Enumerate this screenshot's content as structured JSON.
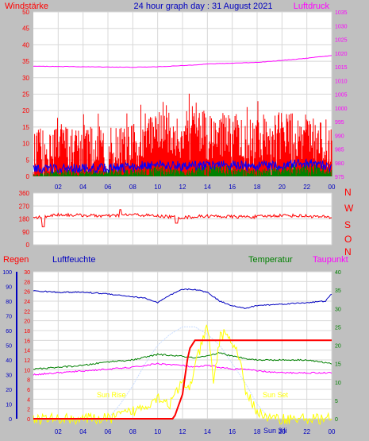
{
  "header": {
    "left_label": "Windstärke",
    "title": "24 hour graph day : 31 August 2021",
    "right_label": "Luftdruck"
  },
  "bottom_header": {
    "rain_label": "Regen",
    "humidity_label": "Luftfeuchte",
    "temperature_label": "Temperatur",
    "dewpoint_label": "Taupunkt"
  },
  "annotations": {
    "sunrise_label": "Sun Rise",
    "sunset_label": "Sun Set",
    "sun_mid_label": "Sun 3ili"
  },
  "colors": {
    "background": "#c0c0c0",
    "plot": "#ffffff",
    "wind_gust": "#ff0000",
    "wind_avg": "#0000ff",
    "wind_min": "#008000",
    "pressure": "#ff00ff",
    "direction": "#ff0000",
    "humidity": "#0000c0",
    "temperature": "#008000",
    "dewpoint": "#ff00ff",
    "rain": "#ff0000",
    "solar": "#ffff00",
    "solar_max": "#c8dcff",
    "axis_blue": "#0000c0"
  },
  "chart_data": [
    {
      "type": "line",
      "xlabel": "",
      "ylabel": "Windstärke",
      "x_ticks": [
        "02",
        "04",
        "06",
        "08",
        "10",
        "12",
        "14",
        "16",
        "18",
        "20",
        "22",
        "00"
      ],
      "ylim": [
        0,
        50
      ],
      "y_ticks": [
        "0",
        "5",
        "10",
        "15",
        "20",
        "25",
        "30",
        "35",
        "40",
        "45",
        "50"
      ],
      "y2lim": [
        975,
        1035
      ],
      "y2_ticks": [
        "975",
        "980",
        "985",
        "990",
        "995",
        "1000",
        "1005",
        "1010",
        "1015",
        "1020",
        "1025",
        "1030",
        "1035"
      ],
      "grid": true,
      "series": [
        {
          "name": "Luftdruck",
          "axis": "right",
          "x": [
            0,
            2,
            4,
            6,
            8,
            10,
            12,
            14,
            16,
            18,
            20,
            22,
            24
          ],
          "values": [
            1015.2,
            1015.1,
            1015.0,
            1014.9,
            1014.8,
            1015.0,
            1015.4,
            1016.0,
            1016.3,
            1016.6,
            1017.3,
            1018.1,
            1019.1
          ]
        },
        {
          "name": "gust",
          "x": [
            0,
            2,
            4,
            6,
            8,
            10,
            12,
            13,
            14,
            16,
            18,
            20,
            22,
            24
          ],
          "values": [
            7,
            9,
            9,
            8,
            9,
            13,
            12,
            16,
            12,
            13,
            11,
            13,
            12,
            8
          ]
        },
        {
          "name": "average",
          "x": [
            0,
            2,
            4,
            6,
            8,
            10,
            12,
            14,
            16,
            18,
            20,
            22,
            24
          ],
          "values": [
            2,
            2.5,
            2.5,
            2.5,
            2.8,
            4,
            3,
            3.5,
            3.5,
            3,
            3.5,
            4,
            3
          ]
        },
        {
          "name": "minimum",
          "x": [
            0,
            2,
            4,
            6,
            8,
            10,
            12,
            14,
            16,
            18,
            20,
            22,
            24
          ],
          "values": [
            0.5,
            1,
            1,
            1,
            1,
            1.5,
            1,
            1.5,
            1.5,
            1,
            1.5,
            2,
            1
          ]
        }
      ]
    },
    {
      "type": "line",
      "xlabel": "",
      "ylabel": "",
      "ylim": [
        0,
        360
      ],
      "y_ticks": [
        "0",
        "90",
        "180",
        "270",
        "360"
      ],
      "right_labels": [
        "N",
        "W",
        "S",
        "O",
        "N"
      ],
      "grid": true,
      "series": [
        {
          "name": "direction",
          "x": [
            0,
            1,
            2,
            4,
            6,
            8,
            10,
            12,
            14,
            16,
            18,
            20,
            22,
            24
          ],
          "values": [
            185,
            200,
            210,
            205,
            200,
            210,
            200,
            190,
            200,
            195,
            195,
            205,
            200,
            190
          ]
        }
      ]
    },
    {
      "type": "line",
      "xlabel": "",
      "ylabel": "",
      "x_ticks": [
        "02",
        "04",
        "06",
        "08",
        "10",
        "12",
        "14",
        "16",
        "18",
        "20",
        "22",
        "00"
      ],
      "ylim_humidity": [
        0,
        100
      ],
      "humidity_ticks": [
        "0",
        "10",
        "20",
        "30",
        "40",
        "50",
        "60",
        "70",
        "80",
        "90",
        "100"
      ],
      "ylim_rain": [
        0,
        30
      ],
      "rain_ticks": [
        "0",
        "2",
        "4",
        "6",
        "8",
        "10",
        "12",
        "14",
        "16",
        "18",
        "20",
        "22",
        "24",
        "26",
        "28",
        "30"
      ],
      "ylim_temp": [
        0,
        40
      ],
      "temp_ticks": [
        "0",
        "5",
        "10",
        "15",
        "20",
        "25",
        "30",
        "35",
        "40"
      ],
      "grid": true,
      "series": [
        {
          "name": "Luftfeuchte",
          "axis": "humidity",
          "x": [
            0,
            2,
            4,
            6,
            8,
            9,
            10,
            11,
            12,
            13,
            14,
            15,
            16,
            17,
            18,
            20,
            22,
            23.5,
            24
          ],
          "values": [
            87,
            86,
            86,
            85,
            83,
            82,
            79,
            84,
            88,
            88,
            86,
            80,
            77,
            75,
            77,
            78,
            79,
            80,
            85
          ]
        },
        {
          "name": "Temperatur",
          "axis": "temp",
          "x": [
            0,
            2,
            4,
            6,
            8,
            10,
            12,
            13,
            14,
            15,
            16,
            17,
            18,
            20,
            22,
            24
          ],
          "values": [
            13.5,
            14,
            14.5,
            15.5,
            16,
            17.5,
            17,
            16.5,
            17,
            18,
            17,
            16.5,
            16,
            16,
            16,
            15
          ]
        },
        {
          "name": "Taupunkt",
          "axis": "temp",
          "x": [
            0,
            2,
            4,
            6,
            8,
            10,
            12,
            13,
            14,
            15,
            16,
            17,
            18,
            20,
            22,
            24
          ],
          "values": [
            12,
            12.5,
            13,
            13.5,
            14,
            15,
            14.5,
            14,
            14.5,
            14,
            13.5,
            13.5,
            13,
            12.5,
            12.5,
            12.5
          ]
        },
        {
          "name": "Regen",
          "axis": "rain",
          "x": [
            0,
            11.3,
            12,
            12.5,
            13,
            24
          ],
          "values": [
            0,
            0,
            5,
            14,
            16,
            16
          ]
        },
        {
          "name": "solar",
          "axis": "temp",
          "x": [
            0,
            6,
            7,
            8,
            9,
            10,
            11,
            12,
            12.5,
            13,
            13.5,
            14,
            14.5,
            15,
            15.5,
            16,
            16.5,
            17,
            18,
            19,
            24
          ],
          "values": [
            0,
            0,
            1,
            2,
            3.5,
            6,
            4,
            10,
            8,
            14,
            20,
            25,
            10,
            22,
            24,
            20,
            18,
            8,
            2,
            0,
            0
          ]
        },
        {
          "name": "solar_max",
          "axis": "temp",
          "x": [
            6,
            7,
            8,
            9,
            10,
            11,
            12,
            13,
            14,
            15,
            16,
            17,
            18,
            19
          ],
          "values": [
            0,
            4,
            9,
            15,
            20,
            23,
            25,
            25,
            23,
            20,
            15,
            10,
            4,
            0
          ]
        }
      ]
    }
  ]
}
